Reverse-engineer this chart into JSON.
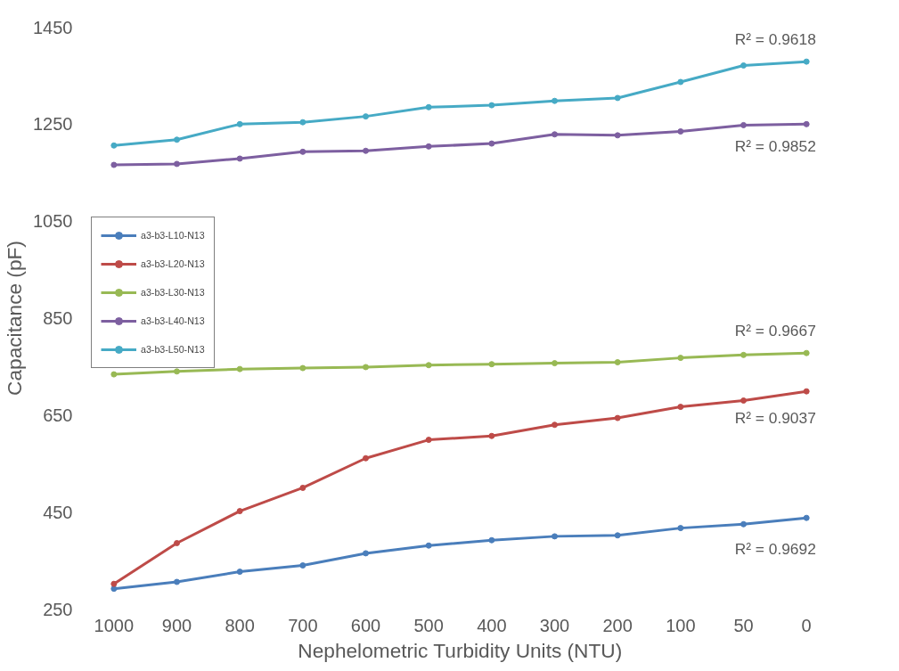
{
  "chart_data": {
    "type": "line",
    "xlabel": "Nephelometric Turbidity Units (NTU)",
    "ylabel": "Capacitance (pF)",
    "categories": [
      "1000",
      "900",
      "800",
      "700",
      "600",
      "500",
      "400",
      "300",
      "200",
      "100",
      "50",
      "0"
    ],
    "series": [
      {
        "name": "a3-b3-L10-N13",
        "color": "#4a7ebb",
        "values": [
          292,
          306,
          327,
          340,
          365,
          381,
          392,
          400,
          402,
          417,
          425,
          438
        ]
      },
      {
        "name": "a3-b3-L20-N13",
        "color": "#be4b48",
        "values": [
          302,
          386,
          452,
          500,
          561,
          599,
          607,
          630,
          644,
          667,
          680,
          699
        ]
      },
      {
        "name": "a3-b3-L30-N13",
        "color": "#98b954",
        "values": [
          734,
          740,
          745,
          747,
          749,
          753,
          755,
          757,
          759,
          768,
          774,
          778
        ]
      },
      {
        "name": "a3-b3-L40-N13",
        "color": "#7d5fa0",
        "values": [
          1166,
          1168,
          1179,
          1193,
          1195,
          1204,
          1210,
          1229,
          1227,
          1235,
          1248,
          1250
        ]
      },
      {
        "name": "a3-b3-L50-N13",
        "color": "#46aac5",
        "values": [
          1206,
          1218,
          1250,
          1254,
          1266,
          1285,
          1289,
          1298,
          1304,
          1337,
          1371,
          1379
        ]
      }
    ],
    "ylim": [
      250,
      1450
    ],
    "yticks": [
      250,
      450,
      650,
      850,
      1050,
      1250,
      1450
    ],
    "annotations": [
      "R² = 0.9692",
      "R² = 0.9037",
      "R² = 0.9667",
      "R² = 0.9852",
      "R² = 0.9618"
    ],
    "grid": false,
    "legend": "top left",
    "marker": "circle",
    "line_style": "solid"
  }
}
